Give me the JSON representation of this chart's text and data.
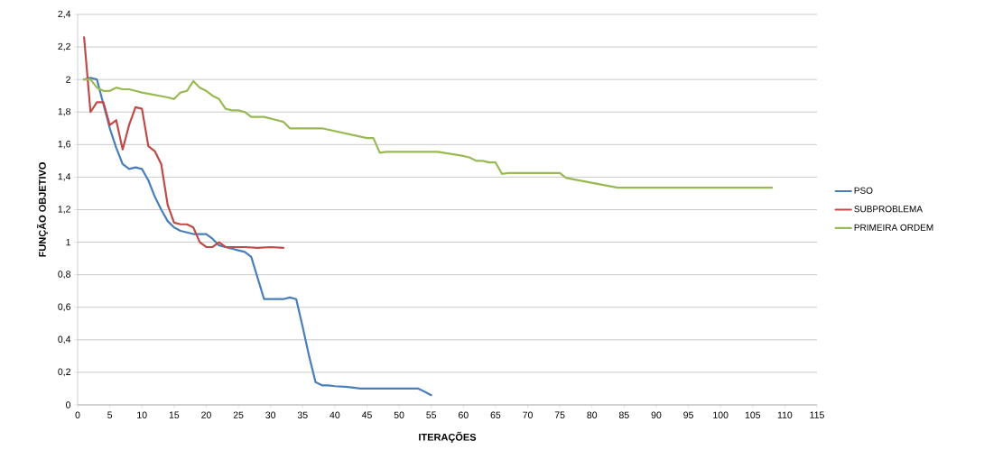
{
  "chart_data": {
    "type": "line",
    "xlabel": "ITERAÇÕES",
    "ylabel": "FUNÇÃO OBJETIVO",
    "xlim": [
      0,
      115
    ],
    "xticks": [
      0,
      5,
      10,
      15,
      20,
      25,
      30,
      35,
      40,
      45,
      50,
      55,
      60,
      65,
      70,
      75,
      80,
      85,
      90,
      95,
      100,
      105,
      110,
      115
    ],
    "ylim": [
      0,
      2.4
    ],
    "yticks": [
      0,
      {
        "value": 0.2,
        "label": "0,2"
      },
      {
        "value": 0.4,
        "label": "0,4"
      },
      {
        "value": 0.6,
        "label": "0,6"
      },
      {
        "value": 0.8,
        "label": "0,8"
      },
      1,
      {
        "value": 1.2,
        "label": "1,2"
      },
      {
        "value": 1.4,
        "label": "1,4"
      },
      {
        "value": 1.6,
        "label": "1,6"
      },
      {
        "value": 1.8,
        "label": "1,8"
      },
      2,
      {
        "value": 2.2,
        "label": "2,2"
      },
      {
        "value": 2.4,
        "label": "2,4"
      }
    ],
    "grid": "y",
    "legend": "right",
    "marker": "none",
    "line_style": "solid",
    "series": [
      {
        "name": "PSO",
        "color": "#4a7ebb",
        "x": [
          1,
          2,
          3,
          4,
          5,
          6,
          7,
          8,
          9,
          10,
          11,
          12,
          13,
          14,
          15,
          16,
          17,
          18,
          19,
          20,
          21,
          22,
          23,
          24,
          25,
          26,
          27,
          28,
          29,
          30,
          31,
          32,
          33,
          34,
          35,
          36,
          37,
          38,
          39,
          40,
          42,
          44,
          46,
          50,
          53,
          54,
          55
        ],
        "values": [
          2.0,
          2.01,
          2.0,
          1.85,
          1.7,
          1.58,
          1.48,
          1.45,
          1.46,
          1.45,
          1.38,
          1.28,
          1.2,
          1.13,
          1.09,
          1.07,
          1.06,
          1.05,
          1.05,
          1.05,
          1.02,
          0.98,
          0.97,
          0.96,
          0.95,
          0.94,
          0.91,
          0.78,
          0.65,
          0.65,
          0.65,
          0.65,
          0.66,
          0.65,
          0.48,
          0.3,
          0.14,
          0.12,
          0.12,
          0.115,
          0.11,
          0.1,
          0.1,
          0.1,
          0.1,
          0.08,
          0.06
        ]
      },
      {
        "name": "SUBPROBLEMA",
        "color": "#be4b48",
        "x": [
          1,
          2,
          3,
          4,
          5,
          6,
          7,
          8,
          9,
          10,
          11,
          12,
          13,
          14,
          15,
          16,
          17,
          18,
          19,
          20,
          21,
          22,
          23,
          24,
          26,
          28,
          30,
          32
        ],
        "values": [
          2.26,
          1.8,
          1.86,
          1.86,
          1.72,
          1.75,
          1.57,
          1.72,
          1.83,
          1.82,
          1.59,
          1.56,
          1.48,
          1.23,
          1.12,
          1.11,
          1.11,
          1.09,
          1.0,
          0.97,
          0.97,
          1.0,
          0.97,
          0.97,
          0.97,
          0.965,
          0.97,
          0.965
        ]
      },
      {
        "name": "PRIMEIRA ORDEM",
        "color": "#98b954",
        "x": [
          1,
          2,
          3,
          4,
          5,
          6,
          7,
          8,
          9,
          10,
          14,
          15,
          16,
          17,
          18,
          19,
          20,
          21,
          22,
          23,
          24,
          25,
          26,
          27,
          29,
          30,
          31,
          32,
          33,
          34,
          38,
          45,
          46,
          47,
          48,
          56,
          60,
          61,
          62,
          63,
          64,
          65,
          66,
          67,
          75,
          76,
          84,
          108
        ],
        "values": [
          2.0,
          2.0,
          1.95,
          1.93,
          1.93,
          1.95,
          1.94,
          1.94,
          1.93,
          1.92,
          1.89,
          1.88,
          1.92,
          1.93,
          1.99,
          1.95,
          1.93,
          1.9,
          1.88,
          1.82,
          1.81,
          1.81,
          1.8,
          1.77,
          1.77,
          1.76,
          1.75,
          1.74,
          1.7,
          1.7,
          1.7,
          1.64,
          1.64,
          1.55,
          1.555,
          1.555,
          1.53,
          1.52,
          1.5,
          1.5,
          1.49,
          1.49,
          1.42,
          1.425,
          1.425,
          1.395,
          1.335,
          1.335
        ]
      }
    ]
  }
}
